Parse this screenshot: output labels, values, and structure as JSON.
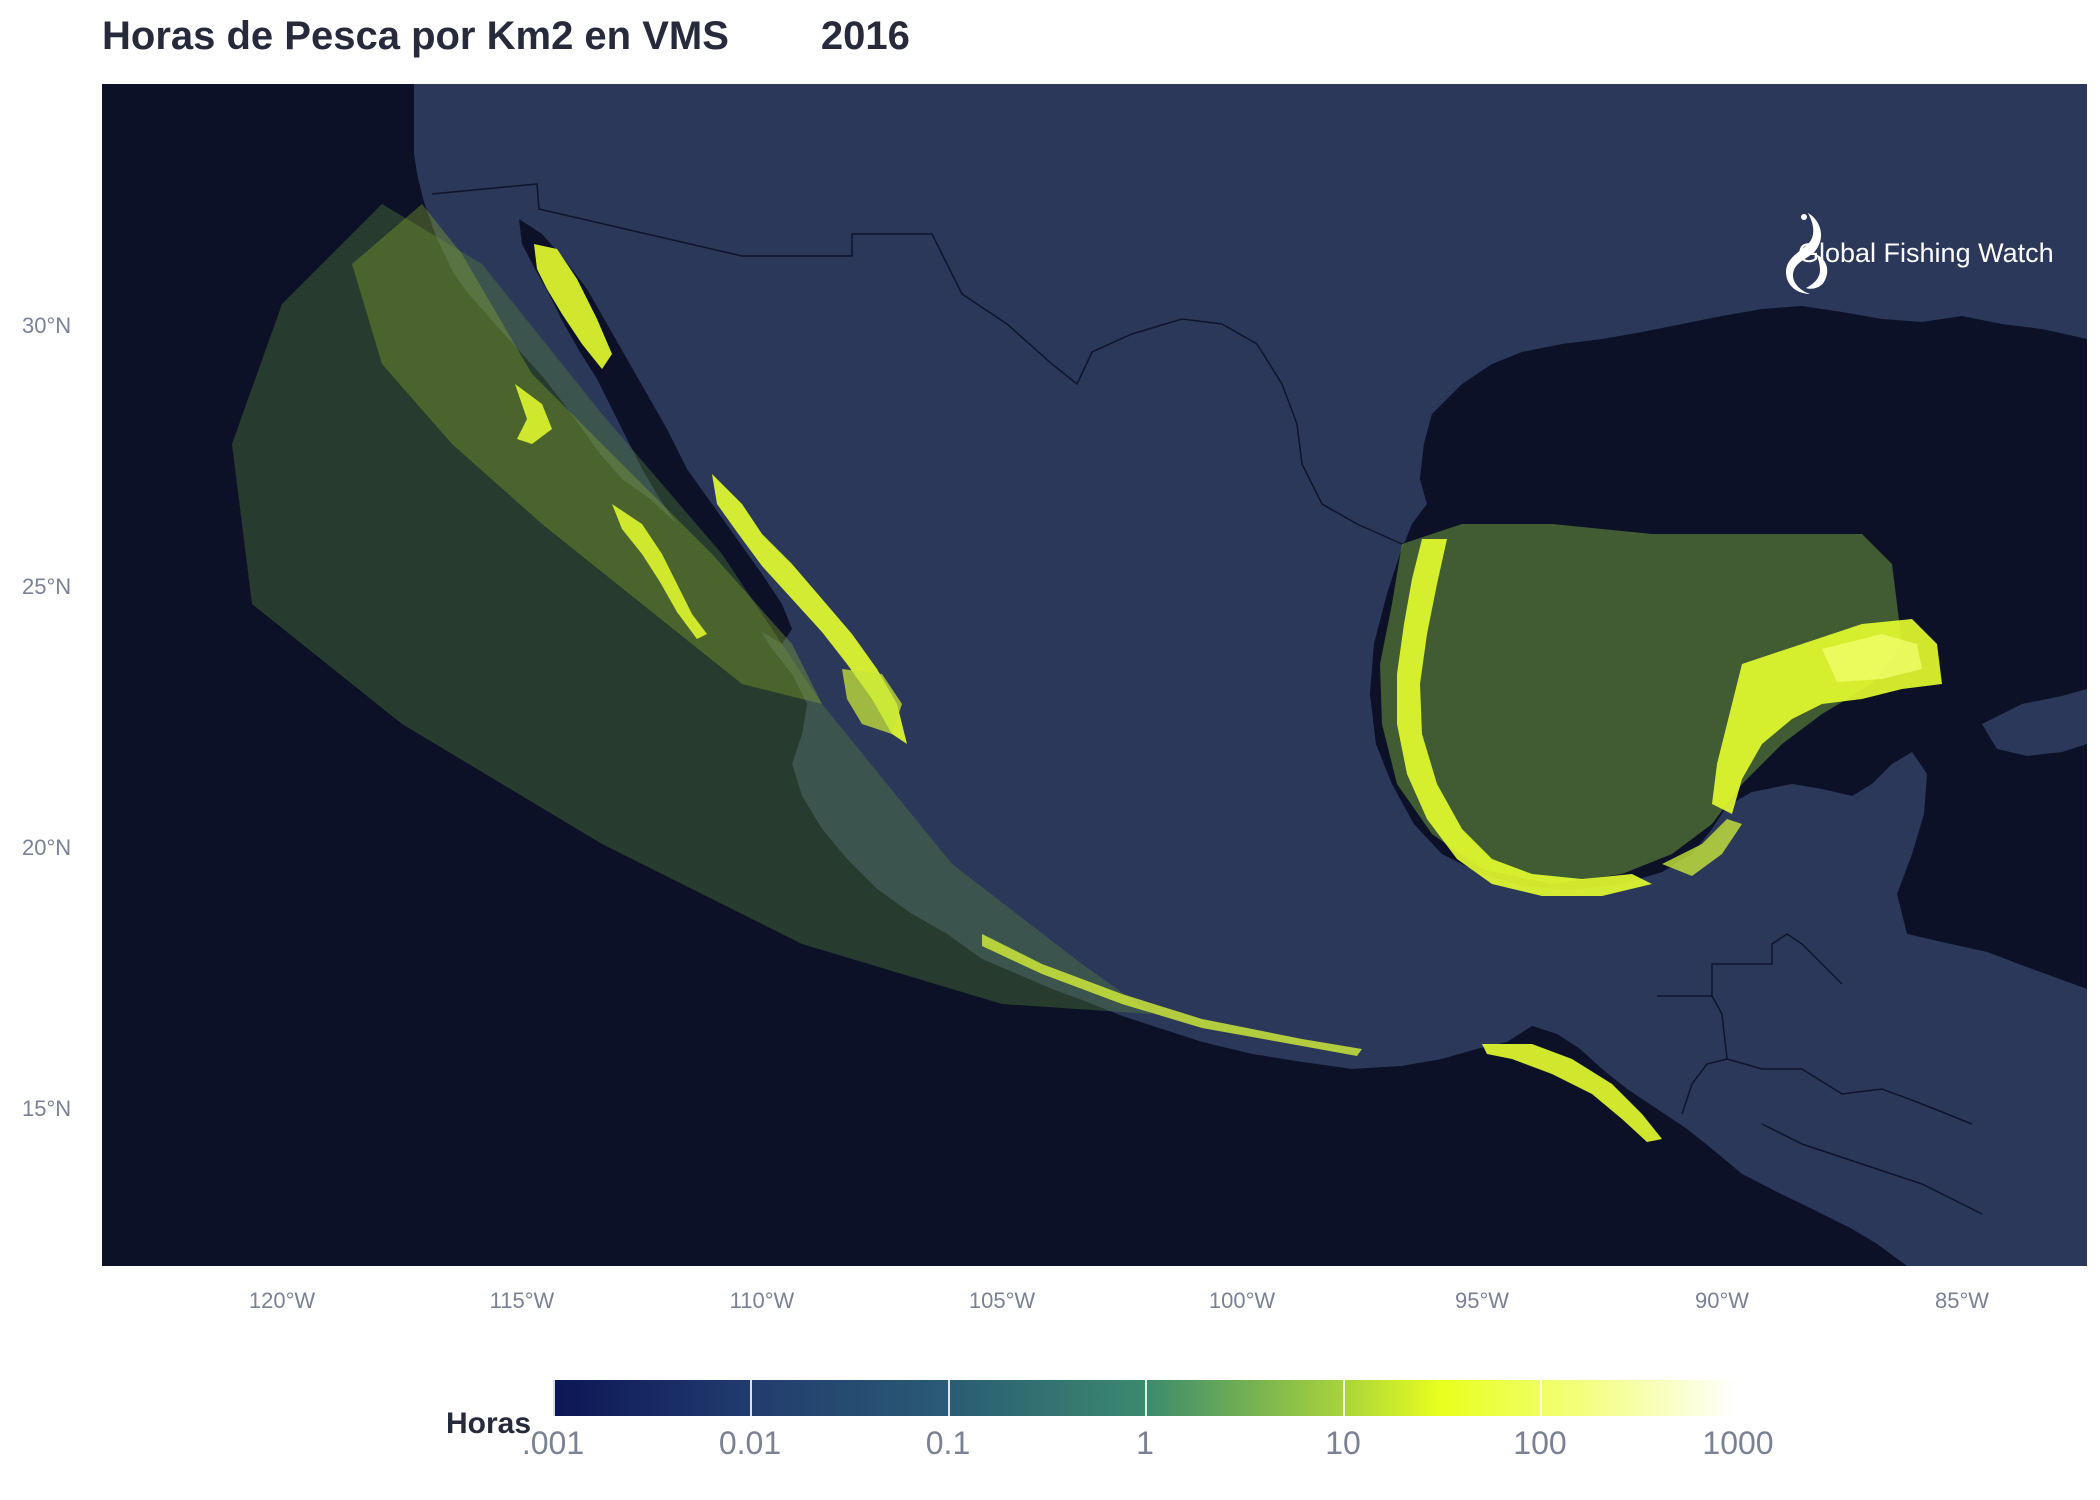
{
  "title": "Horas de Pesca por Km2 en VMS",
  "year": "2016",
  "brand": {
    "name": "Global Fishing Watch",
    "icon": "gfw-fish-logo-icon"
  },
  "colors": {
    "ocean": "#0c1128",
    "land": "#2b3859",
    "fishing_low": "#2a6a5e",
    "fishing_high": "#e6ff2e",
    "border": "#0c1128"
  },
  "axes": {
    "latitude_labels": [
      "30°N",
      "25°N",
      "20°N",
      "15°N"
    ],
    "longitude_labels": [
      "120°W",
      "115°W",
      "110°W",
      "105°W",
      "100°W",
      "95°W",
      "90°W",
      "85°W"
    ]
  },
  "legend": {
    "title": "Horas",
    "scale": "log",
    "labels": [
      ".001",
      "0.01",
      "0.1",
      "1",
      "10",
      "100",
      "1000"
    ]
  },
  "chart_data": {
    "type": "heatmap",
    "title": "Horas de Pesca por Km2 en VMS",
    "subtitle": "2016",
    "projection": "geographic",
    "xlim": [
      -124,
      -82.5
    ],
    "ylim": [
      12.3,
      34.8
    ],
    "x_ticks": [
      -120,
      -115,
      -110,
      -105,
      -100,
      -95,
      -90,
      -85
    ],
    "y_ticks": [
      30,
      25,
      20,
      15
    ],
    "colorbar": {
      "label": "Horas",
      "range": [
        0.001,
        1000
      ],
      "scale": "log"
    }
  }
}
